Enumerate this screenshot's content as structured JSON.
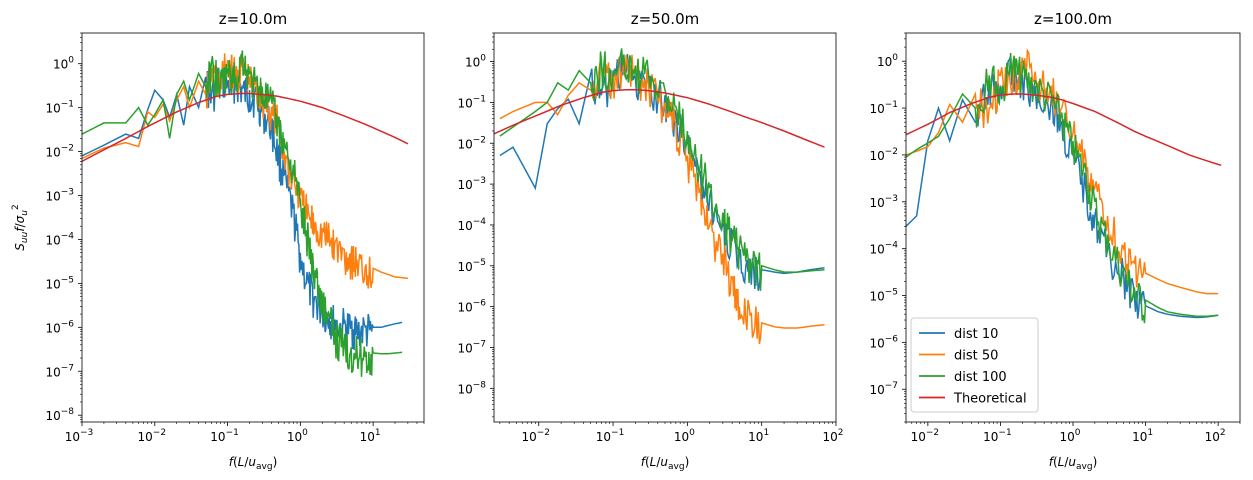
{
  "chart_data": [
    {
      "type": "line",
      "title": "z=10.0m",
      "xlabel": "f(L/u_avg)",
      "ylabel": "S_uu f/σ_u^2",
      "xscale": "log",
      "yscale": "log",
      "xlim": [
        0.001,
        50
      ],
      "ylim": [
        7e-09,
        5
      ],
      "xticks": [
        {
          "value": 0.001,
          "base": "10",
          "exp": "−3"
        },
        {
          "value": 0.01,
          "base": "10",
          "exp": "−2"
        },
        {
          "value": 0.1,
          "base": "10",
          "exp": "−1"
        },
        {
          "value": 1,
          "base": "10",
          "exp": "0"
        },
        {
          "value": 10,
          "base": "10",
          "exp": "1"
        }
      ],
      "yticks": [
        {
          "value": 1e-08,
          "base": "10",
          "exp": "−8"
        },
        {
          "value": 1e-07,
          "base": "10",
          "exp": "−7"
        },
        {
          "value": 1e-06,
          "base": "10",
          "exp": "−6"
        },
        {
          "value": 1e-05,
          "base": "10",
          "exp": "−5"
        },
        {
          "value": 0.0001,
          "base": "10",
          "exp": "−4"
        },
        {
          "value": 0.001,
          "base": "10",
          "exp": "−3"
        },
        {
          "value": 0.01,
          "base": "10",
          "exp": "−2"
        },
        {
          "value": 0.1,
          "base": "10",
          "exp": "−1"
        },
        {
          "value": 1,
          "base": "10",
          "exp": "0"
        }
      ],
      "series": [
        {
          "name": "dist 10",
          "color": "#1f77b4",
          "x": [
            0.001,
            0.002,
            0.004,
            0.006,
            0.008,
            0.01,
            0.013,
            0.016,
            0.02,
            0.025,
            0.03,
            0.04,
            0.05,
            0.06,
            0.08,
            0.1,
            0.13,
            0.16,
            0.2,
            0.25,
            0.3,
            0.4,
            0.5,
            0.6,
            0.8,
            1.0,
            1.3,
            1.6,
            2.0,
            2.5,
            3,
            4,
            5,
            6,
            8,
            10,
            13,
            16,
            20,
            25
          ],
          "y": [
            0.008,
            0.014,
            0.025,
            0.02,
            0.09,
            0.25,
            0.15,
            0.06,
            0.2,
            0.04,
            0.3,
            0.1,
            0.5,
            0.2,
            0.6,
            0.4,
            0.5,
            0.3,
            0.25,
            0.2,
            0.1,
            0.05,
            0.01,
            0.003,
            0.0005,
            5e-05,
            1e-05,
            5e-06,
            3e-06,
            2e-06,
            1.5e-06,
            1.3e-06,
            1.2e-06,
            1.1e-06,
            1.05e-06,
            1e-06,
            1e-06,
            1.1e-06,
            1.2e-06,
            1.3e-06
          ]
        },
        {
          "name": "dist 50",
          "color": "#ff7f0e",
          "x": [
            0.001,
            0.002,
            0.004,
            0.006,
            0.008,
            0.01,
            0.013,
            0.016,
            0.02,
            0.025,
            0.03,
            0.04,
            0.05,
            0.06,
            0.08,
            0.1,
            0.13,
            0.16,
            0.2,
            0.25,
            0.3,
            0.4,
            0.5,
            0.6,
            0.8,
            1.0,
            1.3,
            1.6,
            2.0,
            2.5,
            3,
            4,
            5,
            6,
            8,
            10,
            13,
            16,
            20,
            25,
            30
          ],
          "y": [
            0.007,
            0.012,
            0.016,
            0.013,
            0.08,
            0.06,
            0.12,
            0.05,
            0.15,
            0.3,
            0.1,
            0.4,
            0.2,
            0.8,
            0.5,
            1.2,
            0.6,
            1.0,
            0.5,
            0.3,
            0.2,
            0.1,
            0.05,
            0.01,
            0.003,
            0.001,
            0.0004,
            0.00025,
            0.00018,
            0.00012,
            9e-05,
            6e-05,
            4.5e-05,
            3.5e-05,
            2.7e-05,
            2.2e-05,
            1.8e-05,
            1.6e-05,
            1.4e-05,
            1.35e-05,
            1.3e-05
          ]
        },
        {
          "name": "dist 100",
          "color": "#2ca02c",
          "x": [
            0.001,
            0.002,
            0.004,
            0.006,
            0.008,
            0.01,
            0.013,
            0.016,
            0.02,
            0.025,
            0.03,
            0.04,
            0.05,
            0.06,
            0.08,
            0.1,
            0.13,
            0.16,
            0.2,
            0.25,
            0.3,
            0.4,
            0.5,
            0.6,
            0.8,
            1.0,
            1.3,
            1.6,
            2.0,
            2.5,
            3,
            4,
            5,
            6,
            8,
            10,
            13,
            16,
            20,
            25
          ],
          "y": [
            0.025,
            0.045,
            0.045,
            0.1,
            0.04,
            0.07,
            0.15,
            0.02,
            0.2,
            0.4,
            0.15,
            0.6,
            0.3,
            1.0,
            0.4,
            0.8,
            0.5,
            2.0,
            0.6,
            0.4,
            0.3,
            0.15,
            0.05,
            0.02,
            0.005,
            0.0008,
            0.0001,
            2e-05,
            5e-06,
            2e-06,
            8e-07,
            4.5e-07,
            3.5e-07,
            3e-07,
            2.8e-07,
            2.6e-07,
            2.5e-07,
            2.5e-07,
            2.6e-07,
            2.7e-07
          ]
        },
        {
          "name": "Theoretical",
          "color": "#d62728",
          "x": [
            0.001,
            0.002,
            0.004,
            0.007,
            0.01,
            0.02,
            0.04,
            0.07,
            0.1,
            0.15,
            0.2,
            0.3,
            0.5,
            0.7,
            1.0,
            2.0,
            4.0,
            7.0,
            10,
            20,
            30
          ],
          "y": [
            0.006,
            0.011,
            0.02,
            0.033,
            0.045,
            0.08,
            0.13,
            0.18,
            0.2,
            0.21,
            0.21,
            0.2,
            0.18,
            0.16,
            0.14,
            0.1,
            0.065,
            0.045,
            0.035,
            0.021,
            0.015
          ]
        }
      ]
    },
    {
      "type": "line",
      "title": "z=50.0m",
      "xlabel": "f(L/u_avg)",
      "ylabel": "",
      "xscale": "log",
      "yscale": "log",
      "xlim": [
        0.0025,
        100
      ],
      "ylim": [
        1.5e-09,
        5
      ],
      "xticks": [
        {
          "value": 0.01,
          "base": "10",
          "exp": "−2"
        },
        {
          "value": 0.1,
          "base": "10",
          "exp": "−1"
        },
        {
          "value": 1,
          "base": "10",
          "exp": "0"
        },
        {
          "value": 10,
          "base": "10",
          "exp": "1"
        },
        {
          "value": 100,
          "base": "10",
          "exp": "2"
        }
      ],
      "yticks": [
        {
          "value": 1e-08,
          "base": "10",
          "exp": "−8"
        },
        {
          "value": 1e-07,
          "base": "10",
          "exp": "−7"
        },
        {
          "value": 1e-06,
          "base": "10",
          "exp": "−6"
        },
        {
          "value": 1e-05,
          "base": "10",
          "exp": "−5"
        },
        {
          "value": 0.0001,
          "base": "10",
          "exp": "−4"
        },
        {
          "value": 0.001,
          "base": "10",
          "exp": "−3"
        },
        {
          "value": 0.01,
          "base": "10",
          "exp": "−2"
        },
        {
          "value": 0.1,
          "base": "10",
          "exp": "−1"
        },
        {
          "value": 1,
          "base": "10",
          "exp": "0"
        }
      ],
      "series": [
        {
          "name": "dist 10",
          "color": "#1f77b4",
          "x": [
            0.003,
            0.0045,
            0.009,
            0.013,
            0.018,
            0.025,
            0.035,
            0.05,
            0.07,
            0.1,
            0.14,
            0.2,
            0.3,
            0.5,
            0.7,
            1.0,
            1.5,
            2,
            3,
            4,
            5,
            7,
            10,
            15,
            20,
            30,
            45,
            70
          ],
          "y": [
            0.005,
            0.008,
            0.0008,
            0.03,
            0.07,
            0.12,
            0.03,
            0.5,
            0.15,
            0.6,
            1.0,
            0.4,
            0.3,
            0.15,
            0.05,
            0.01,
            0.002,
            0.0005,
            0.0001,
            4e-05,
            2e-05,
            1.2e-05,
            8e-06,
            7e-06,
            6.5e-06,
            7e-06,
            8e-06,
            9e-06
          ]
        },
        {
          "name": "dist 50",
          "color": "#ff7f0e",
          "x": [
            0.003,
            0.0045,
            0.009,
            0.013,
            0.018,
            0.025,
            0.035,
            0.05,
            0.07,
            0.1,
            0.14,
            0.2,
            0.3,
            0.5,
            0.7,
            1.0,
            1.5,
            2,
            3,
            4,
            5,
            7,
            10,
            15,
            20,
            30,
            45,
            70
          ],
          "y": [
            0.04,
            0.06,
            0.1,
            0.1,
            0.05,
            0.15,
            0.3,
            0.2,
            0.8,
            0.4,
            1.2,
            0.6,
            0.3,
            0.1,
            0.03,
            0.005,
            0.0008,
            0.0001,
            2e-05,
            5e-06,
            1e-06,
            6e-07,
            4e-07,
            3.2e-07,
            3e-07,
            3e-07,
            3.3e-07,
            3.6e-07
          ]
        },
        {
          "name": "dist 100",
          "color": "#2ca02c",
          "x": [
            0.003,
            0.0045,
            0.009,
            0.013,
            0.018,
            0.025,
            0.035,
            0.05,
            0.07,
            0.1,
            0.14,
            0.2,
            0.3,
            0.5,
            0.7,
            1.0,
            1.5,
            2,
            3,
            4,
            5,
            7,
            10,
            15,
            20,
            30,
            45,
            70
          ],
          "y": [
            0.015,
            0.025,
            0.06,
            0.1,
            0.3,
            0.2,
            0.6,
            0.3,
            1.0,
            0.5,
            1.5,
            0.8,
            0.5,
            0.2,
            0.08,
            0.02,
            0.003,
            0.0008,
            0.0002,
            6e-05,
            3e-05,
            1.5e-05,
            1e-05,
            8e-06,
            7e-06,
            7e-06,
            7.5e-06,
            8e-06
          ]
        },
        {
          "name": "Theoretical",
          "color": "#d62728",
          "x": [
            0.0025,
            0.005,
            0.01,
            0.02,
            0.04,
            0.07,
            0.1,
            0.15,
            0.2,
            0.3,
            0.5,
            0.7,
            1,
            2,
            4,
            7,
            10,
            20,
            40,
            70
          ],
          "y": [
            0.017,
            0.03,
            0.05,
            0.085,
            0.13,
            0.175,
            0.195,
            0.205,
            0.205,
            0.195,
            0.17,
            0.15,
            0.13,
            0.09,
            0.058,
            0.04,
            0.032,
            0.02,
            0.012,
            0.008
          ]
        }
      ]
    },
    {
      "type": "line",
      "title": "z=100.0m",
      "xlabel": "f(L/u_avg)",
      "ylabel": "",
      "xscale": "log",
      "yscale": "log",
      "xlim": [
        0.005,
        200
      ],
      "ylim": [
        2e-08,
        4
      ],
      "xticks": [
        {
          "value": 0.01,
          "base": "10",
          "exp": "−2"
        },
        {
          "value": 0.1,
          "base": "10",
          "exp": "−1"
        },
        {
          "value": 1,
          "base": "10",
          "exp": "0"
        },
        {
          "value": 10,
          "base": "10",
          "exp": "1"
        },
        {
          "value": 100,
          "base": "10",
          "exp": "2"
        }
      ],
      "yticks": [
        {
          "value": 1e-07,
          "base": "10",
          "exp": "−7"
        },
        {
          "value": 1e-06,
          "base": "10",
          "exp": "−6"
        },
        {
          "value": 1e-05,
          "base": "10",
          "exp": "−5"
        },
        {
          "value": 0.0001,
          "base": "10",
          "exp": "−4"
        },
        {
          "value": 0.001,
          "base": "10",
          "exp": "−3"
        },
        {
          "value": 0.01,
          "base": "10",
          "exp": "−2"
        },
        {
          "value": 0.1,
          "base": "10",
          "exp": "−1"
        },
        {
          "value": 1,
          "base": "10",
          "exp": "0"
        }
      ],
      "legend": {
        "loc": "lower left",
        "entries": [
          "dist 10",
          "dist 50",
          "dist 100",
          "Theoretical"
        ]
      },
      "series": [
        {
          "name": "dist 10",
          "color": "#1f77b4",
          "x": [
            0.005,
            0.007,
            0.01,
            0.014,
            0.02,
            0.03,
            0.045,
            0.07,
            0.1,
            0.15,
            0.2,
            0.3,
            0.5,
            0.7,
            1.0,
            1.5,
            2,
            3,
            5,
            7,
            10,
            15,
            20,
            30,
            50,
            70,
            100
          ],
          "y": [
            0.0003,
            0.0005,
            0.02,
            0.1,
            0.02,
            0.15,
            0.05,
            0.4,
            0.3,
            0.8,
            0.5,
            0.3,
            0.15,
            0.05,
            0.01,
            0.002,
            0.0005,
            0.0001,
            3e-05,
            1e-05,
            6e-06,
            4.5e-06,
            4e-06,
            3.6e-06,
            3.4e-06,
            3.5e-06,
            3.8e-06
          ]
        },
        {
          "name": "dist 50",
          "color": "#ff7f0e",
          "x": [
            0.005,
            0.007,
            0.01,
            0.014,
            0.02,
            0.03,
            0.045,
            0.07,
            0.1,
            0.15,
            0.2,
            0.3,
            0.5,
            0.7,
            1.0,
            1.5,
            2,
            3,
            5,
            7,
            10,
            15,
            20,
            30,
            50,
            70,
            100
          ],
          "y": [
            0.01,
            0.012,
            0.015,
            0.03,
            0.12,
            0.05,
            0.2,
            0.1,
            0.5,
            0.4,
            1.2,
            0.6,
            0.3,
            0.1,
            0.03,
            0.008,
            0.002,
            0.0005,
            0.0001,
            5e-05,
            3e-05,
            2.2e-05,
            1.8e-05,
            1.5e-05,
            1.2e-05,
            1.1e-05,
            1.1e-05
          ]
        },
        {
          "name": "dist 100",
          "color": "#2ca02c",
          "x": [
            0.005,
            0.007,
            0.01,
            0.014,
            0.02,
            0.03,
            0.045,
            0.07,
            0.1,
            0.15,
            0.2,
            0.3,
            0.5,
            0.7,
            1.0,
            1.5,
            2,
            3,
            5,
            7,
            10,
            15,
            20,
            30,
            50,
            70,
            100
          ],
          "y": [
            0.009,
            0.013,
            0.018,
            0.025,
            0.06,
            0.2,
            0.1,
            0.5,
            0.3,
            1.0,
            0.6,
            0.4,
            0.2,
            0.08,
            0.02,
            0.005,
            0.001,
            0.0002,
            4e-05,
            1.5e-05,
            8e-06,
            5.5e-06,
            4.5e-06,
            4e-06,
            3.6e-06,
            3.6e-06,
            3.8e-06
          ]
        },
        {
          "name": "Theoretical",
          "color": "#d62728",
          "x": [
            0.005,
            0.01,
            0.02,
            0.04,
            0.07,
            0.1,
            0.15,
            0.2,
            0.3,
            0.5,
            0.7,
            1,
            2,
            4,
            7,
            10,
            20,
            40,
            70,
            110
          ],
          "y": [
            0.027,
            0.045,
            0.08,
            0.125,
            0.17,
            0.19,
            0.2,
            0.2,
            0.19,
            0.17,
            0.15,
            0.125,
            0.085,
            0.05,
            0.032,
            0.025,
            0.016,
            0.01,
            0.0075,
            0.006
          ]
        }
      ]
    }
  ]
}
